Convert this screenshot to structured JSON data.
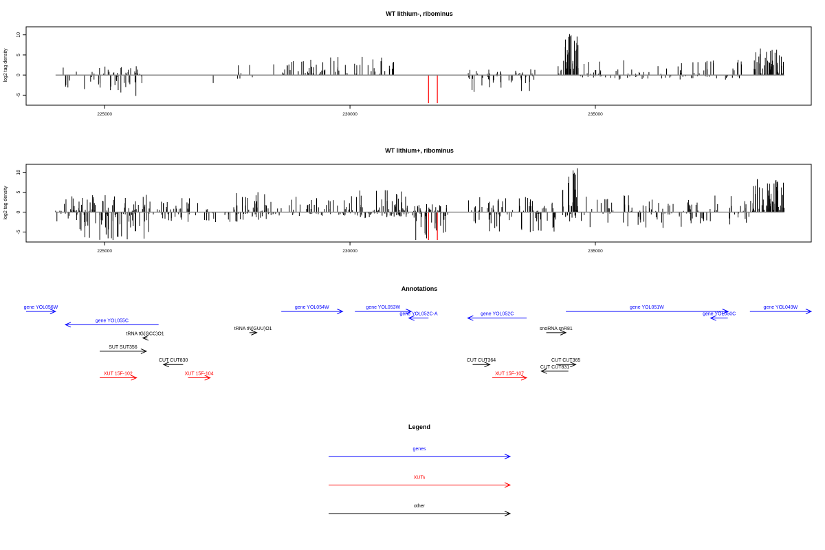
{
  "colors": {
    "gene": "#0000ff",
    "xut": "#ff0000",
    "other": "#000000",
    "highlight": "#ff0000",
    "bars": "#000000",
    "baseline": "#808080",
    "frame": "#000000"
  },
  "chart_data": [
    {
      "type": "bar",
      "title": "WT lithium-, ribominus",
      "ylabel": "log2 tag density",
      "xlim": [
        223400,
        239400
      ],
      "ylim": [
        -7.5,
        12
      ],
      "x_ticks": [
        225000,
        230000,
        235000
      ],
      "y_ticks": [
        -5,
        0,
        5,
        10
      ],
      "grid": false,
      "highlight_bars": [
        {
          "x": 231600,
          "y": -7
        },
        {
          "x": 231780,
          "y": -7
        }
      ],
      "clusters": [
        {
          "x0": 224000,
          "x1": 224900,
          "ymax": 3,
          "ymin": -3.5,
          "n": 14
        },
        {
          "x0": 224900,
          "x1": 225800,
          "ymax": 2.2,
          "ymin": -5.2,
          "n": 40
        },
        {
          "x0": 227200,
          "x1": 227300,
          "ymax": 0,
          "ymin": -2,
          "n": 1
        },
        {
          "x0": 227600,
          "x1": 228100,
          "ymax": 2.5,
          "ymin": -1,
          "n": 7
        },
        {
          "x0": 228400,
          "x1": 229500,
          "ymax": 3.8,
          "ymin": 0,
          "n": 30
        },
        {
          "x0": 229600,
          "x1": 230900,
          "ymax": 4.5,
          "ymin": 0,
          "n": 30
        },
        {
          "x0": 232400,
          "x1": 233800,
          "ymax": 1.5,
          "ymin": -4.2,
          "n": 55
        },
        {
          "x0": 234100,
          "x1": 234350,
          "ymax": 2.2,
          "ymin": 0,
          "n": 4
        },
        {
          "x0": 234350,
          "x1": 234650,
          "ymax": 10.2,
          "ymin": 0,
          "n": 28
        },
        {
          "x0": 234700,
          "x1": 238200,
          "ymax": 3.8,
          "ymin": -1.2,
          "n": 90
        },
        {
          "x0": 238200,
          "x1": 238850,
          "ymax": 6.6,
          "ymin": 0,
          "n": 45
        }
      ]
    },
    {
      "type": "bar",
      "title": "WT lithium+, ribominus",
      "ylabel": "log2 tag density",
      "xlim": [
        223400,
        239400
      ],
      "ylim": [
        -7.5,
        12
      ],
      "x_ticks": [
        225000,
        230000,
        235000
      ],
      "y_ticks": [
        -5,
        0,
        5,
        10
      ],
      "grid": false,
      "highlight_bars": [
        {
          "x": 231600,
          "y": -7
        },
        {
          "x": 231780,
          "y": -7
        }
      ],
      "clusters": [
        {
          "x0": 224000,
          "x1": 224300,
          "ymax": 3.2,
          "ymin": -3,
          "n": 10
        },
        {
          "x0": 224300,
          "x1": 225900,
          "ymax": 4.5,
          "ymin": -7,
          "n": 110
        },
        {
          "x0": 225900,
          "x1": 226900,
          "ymax": 3.5,
          "ymin": -2.5,
          "n": 40
        },
        {
          "x0": 227000,
          "x1": 227600,
          "ymax": 2,
          "ymin": -2.5,
          "n": 15
        },
        {
          "x0": 227600,
          "x1": 228300,
          "ymax": 5,
          "ymin": -2.5,
          "n": 45
        },
        {
          "x0": 228300,
          "x1": 230100,
          "ymax": 4,
          "ymin": -1,
          "n": 60
        },
        {
          "x0": 230100,
          "x1": 231300,
          "ymax": 5.5,
          "ymin": -1.5,
          "n": 80
        },
        {
          "x0": 231300,
          "x1": 232000,
          "ymax": 2,
          "ymin": -7,
          "n": 50
        },
        {
          "x0": 232400,
          "x1": 234200,
          "ymax": 3.8,
          "ymin": -5,
          "n": 80
        },
        {
          "x0": 234300,
          "x1": 234650,
          "ymax": 11,
          "ymin": -3,
          "n": 35
        },
        {
          "x0": 234700,
          "x1": 238200,
          "ymax": 4.2,
          "ymin": -4,
          "n": 110
        },
        {
          "x0": 238200,
          "x1": 238850,
          "ymax": 8.3,
          "ymin": 0,
          "n": 60
        }
      ]
    },
    {
      "type": "diagram",
      "title": "Annotations",
      "features": [
        {
          "label": "gene YOL056W",
          "kind": "gene",
          "strand": "+",
          "row": 0,
          "x0": 223400,
          "x1": 224000
        },
        {
          "label": "gene YOL055C",
          "kind": "gene",
          "strand": "-",
          "row": 1,
          "x0": 224200,
          "x1": 226100
        },
        {
          "label": "tRNA tG(GCC)O1",
          "kind": "other",
          "strand": "-",
          "row": 2,
          "x0": 225780,
          "x1": 225870
        },
        {
          "label": "SUT SUT356",
          "kind": "other",
          "strand": "+",
          "row": 3,
          "x0": 224900,
          "x1": 225850
        },
        {
          "label": "XUT 15F-102",
          "kind": "xut",
          "strand": "+",
          "row": 5,
          "x0": 224900,
          "x1": 225650
        },
        {
          "label": "CUT CUT830",
          "kind": "other",
          "strand": "-",
          "row": 4,
          "x0": 226200,
          "x1": 226600
        },
        {
          "label": "XUT 15F-104",
          "kind": "xut",
          "strand": "+",
          "row": 5,
          "x0": 226700,
          "x1": 227150
        },
        {
          "label": "tRNA tN(GUU)O1",
          "kind": "other",
          "strand": "+",
          "row": 1.6,
          "x0": 227950,
          "x1": 228100
        },
        {
          "label": "gene YOL054W",
          "kind": "gene",
          "strand": "+",
          "row": 0,
          "x0": 228600,
          "x1": 229850
        },
        {
          "label": "gene YOL053W",
          "kind": "gene",
          "strand": "+",
          "row": 0,
          "x0": 230100,
          "x1": 231250
        },
        {
          "label": "gene YOL052C-A",
          "kind": "gene",
          "strand": "-",
          "row": 0.5,
          "x0": 231200,
          "x1": 231600
        },
        {
          "label": "gene YOL052C",
          "kind": "gene",
          "strand": "-",
          "row": 0.5,
          "x0": 232400,
          "x1": 233600
        },
        {
          "label": "CUT CUT364",
          "kind": "other",
          "strand": "+",
          "row": 4,
          "x0": 232500,
          "x1": 232850
        },
        {
          "label": "XUT 15F-107",
          "kind": "xut",
          "strand": "+",
          "row": 5,
          "x0": 232900,
          "x1": 233600
        },
        {
          "label": "snoRNA snR81",
          "kind": "other",
          "strand": "+",
          "row": 1.6,
          "x0": 234000,
          "x1": 234400
        },
        {
          "label": "CUT CUT365",
          "kind": "other",
          "strand": "+",
          "row": 4,
          "x0": 234200,
          "x1": 234600
        },
        {
          "label": "CUT CUT831",
          "kind": "other",
          "strand": "-",
          "row": 4.5,
          "x0": 233900,
          "x1": 234450
        },
        {
          "label": "gene YOL051W",
          "kind": "gene",
          "strand": "+",
          "row": 0,
          "x0": 234400,
          "x1": 237700
        },
        {
          "label": "gene YOL050C",
          "kind": "gene",
          "strand": "-",
          "row": 0.5,
          "x0": 237350,
          "x1": 237700
        },
        {
          "label": "gene YOL049W",
          "kind": "gene",
          "strand": "+",
          "row": 0,
          "x0": 238150,
          "x1": 239400
        }
      ]
    },
    {
      "type": "legend",
      "title": "Legend",
      "entries": [
        {
          "label": "genes",
          "kind": "gene"
        },
        {
          "label": "XUTs",
          "kind": "xut"
        },
        {
          "label": "other",
          "kind": "other"
        }
      ]
    }
  ]
}
